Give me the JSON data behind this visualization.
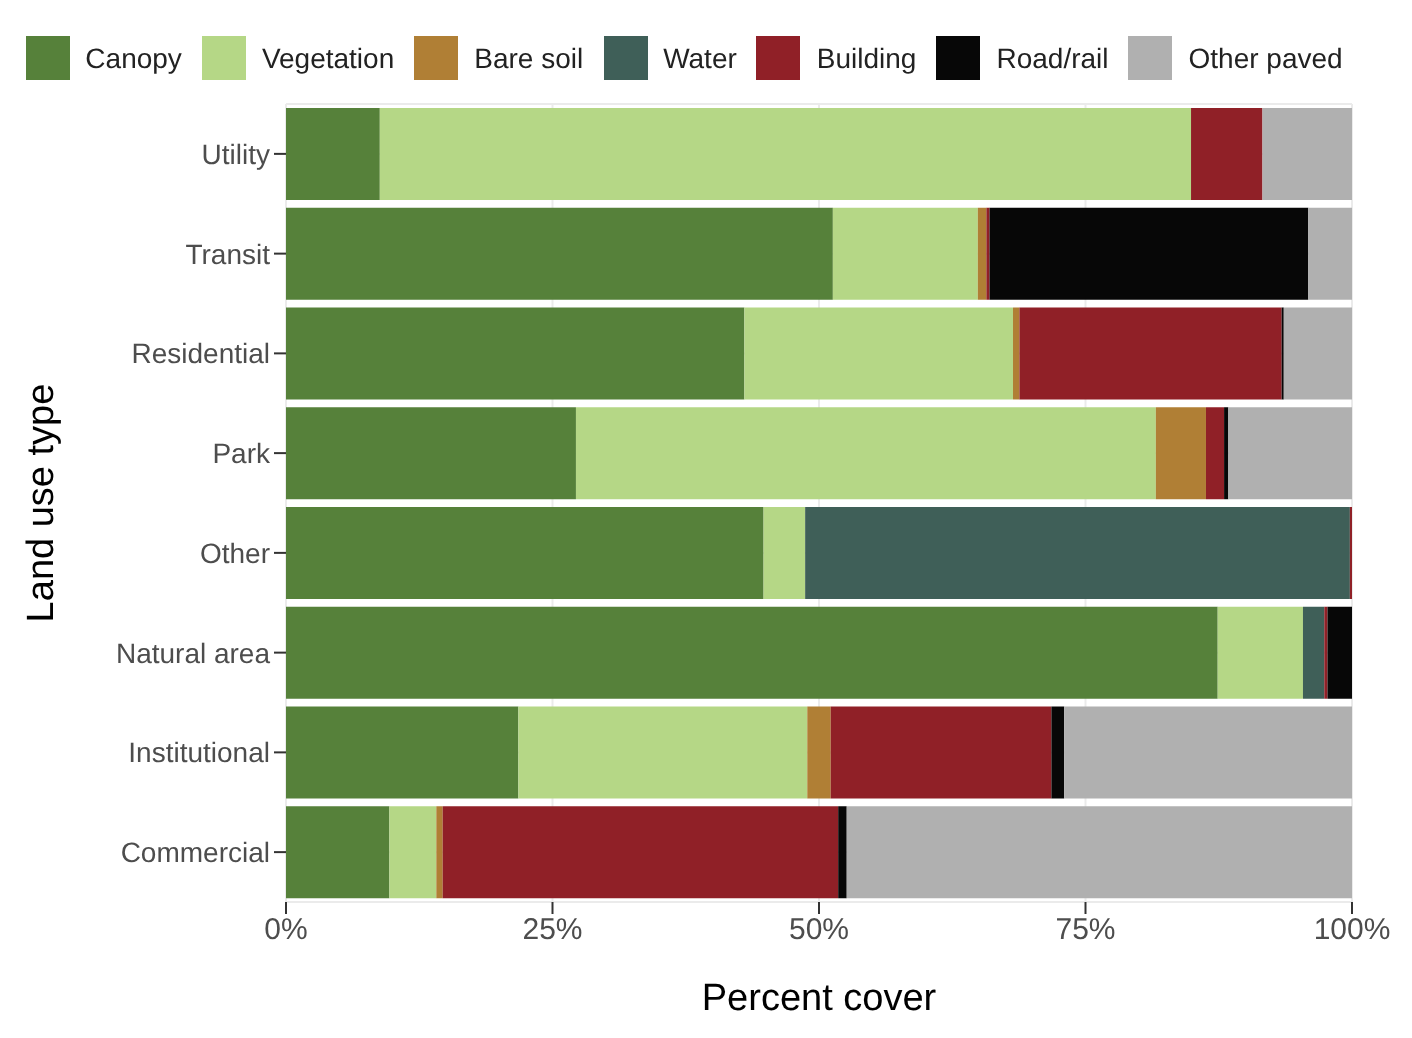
{
  "chart_data": {
    "type": "bar",
    "orientation": "horizontal",
    "stacked": true,
    "xlabel": "Percent cover",
    "ylabel": "Land use type",
    "categories": [
      "Utility",
      "Transit",
      "Residential",
      "Park",
      "Other",
      "Natural area",
      "Institutional",
      "Commercial"
    ],
    "series": [
      {
        "name": "Canopy",
        "color": "#56813a",
        "values": [
          8.8,
          51.3,
          43.0,
          27.2,
          44.8,
          87.4,
          21.8,
          9.7
        ]
      },
      {
        "name": "Vegetation",
        "color": "#b5d786",
        "values": [
          76.1,
          13.6,
          25.2,
          54.4,
          3.9,
          8.0,
          27.1,
          4.4
        ]
      },
      {
        "name": "Bare soil",
        "color": "#b07f35",
        "values": [
          0,
          0.8,
          0.6,
          4.7,
          0,
          0,
          2.2,
          0.6
        ]
      },
      {
        "name": "Water",
        "color": "#3f5f58",
        "values": [
          0,
          0,
          0,
          0,
          51.1,
          2.0,
          0,
          0
        ]
      },
      {
        "name": "Building",
        "color": "#902027",
        "values": [
          6.7,
          0.3,
          24.6,
          1.7,
          0.2,
          0.3,
          20.7,
          37.1
        ]
      },
      {
        "name": "Road/rail",
        "color": "#070707",
        "values": [
          0,
          29.9,
          0.2,
          0.4,
          0,
          2.3,
          1.2,
          0.8
        ]
      },
      {
        "name": "Other paved",
        "color": "#b0b0b0",
        "values": [
          8.4,
          4.1,
          6.4,
          11.6,
          0,
          0,
          27.0,
          47.4
        ]
      }
    ],
    "xlim": [
      0,
      100
    ],
    "xticks": [
      {
        "value": 0,
        "label": "0%"
      },
      {
        "value": 25,
        "label": "25%"
      },
      {
        "value": 50,
        "label": "50%"
      },
      {
        "value": 75,
        "label": "75%"
      },
      {
        "value": 100,
        "label": "100%"
      }
    ],
    "grid": true,
    "legend": "top"
  }
}
